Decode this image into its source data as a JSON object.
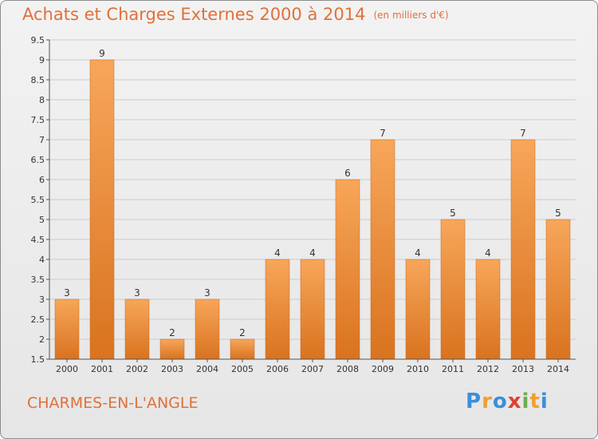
{
  "header": {
    "title": "Achats et Charges Externes 2000 à 2014",
    "unit": "(en milliers d'€)"
  },
  "footer": {
    "commune": "CHARMES-EN-L'ANGLE",
    "brand": [
      "P",
      "r",
      "o",
      "x",
      "i",
      "t",
      "i"
    ],
    "brand_colors": [
      "#3a8fd8",
      "#f0a030",
      "#3a8fd8",
      "#e04030",
      "#6ab04c",
      "#f0a030",
      "#3a8fd8"
    ]
  },
  "colors": {
    "bar_top": "#f7a65a",
    "bar_bottom": "#d9731f",
    "axis": "#555555",
    "grid": "#cccccc",
    "text": "#333333",
    "accent": "#e0703a"
  },
  "chart_data": {
    "type": "bar",
    "categories": [
      "2000",
      "2001",
      "2002",
      "2003",
      "2004",
      "2005",
      "2006",
      "2007",
      "2008",
      "2009",
      "2010",
      "2011",
      "2012",
      "2013",
      "2014"
    ],
    "values": [
      3,
      9,
      3,
      2,
      3,
      2,
      4,
      4,
      6,
      7,
      4,
      5,
      4,
      7,
      5
    ],
    "data_labels": [
      "3",
      "9",
      "3",
      "2",
      "3",
      "2",
      "4",
      "4",
      "6",
      "7",
      "4",
      "5",
      "4",
      "7",
      "5"
    ],
    "title": "Achats et Charges Externes 2000 à 2014",
    "xlabel": "",
    "ylabel": "",
    "ylim": [
      1.5,
      9.5
    ],
    "yticks": [
      1.5,
      2,
      2.5,
      3,
      3.5,
      4,
      4.5,
      5,
      5.5,
      6,
      6.5,
      7,
      7.5,
      8,
      8.5,
      9,
      9.5
    ],
    "ytick_labels": [
      "1.5",
      "2",
      "2.5",
      "3",
      "3.5",
      "4",
      "4.5",
      "5",
      "5.5",
      "6",
      "6.5",
      "7",
      "7.5",
      "8",
      "8.5",
      "9",
      "9.5"
    ],
    "grid": true
  }
}
